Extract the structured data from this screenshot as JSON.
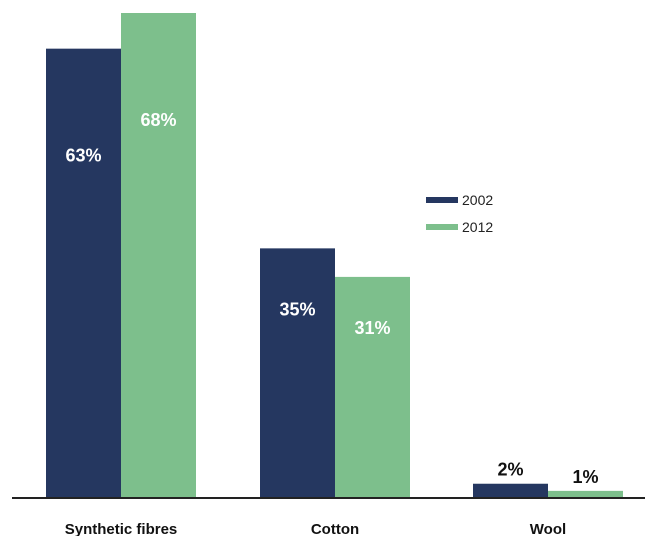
{
  "chart_data": {
    "type": "bar",
    "title": "",
    "xlabel": "",
    "ylabel": "",
    "categories": [
      "Synthetic fibres",
      "Cotton",
      "Wool"
    ],
    "series": [
      {
        "name": "2002",
        "values": [
          63,
          35,
          2
        ],
        "labels": [
          "63%",
          "35%",
          "2%"
        ],
        "color": "#253760"
      },
      {
        "name": "2012",
        "values": [
          68,
          31,
          1
        ],
        "labels": [
          "68%",
          "31%",
          "1%"
        ],
        "color": "#7dbf8c"
      }
    ],
    "ylim": [
      0,
      68
    ],
    "grid": false,
    "legend_position": "right"
  }
}
